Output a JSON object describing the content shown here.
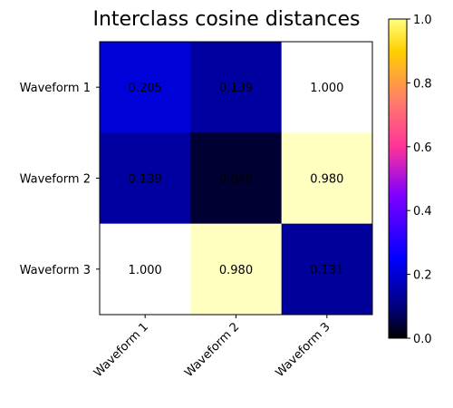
{
  "chart_data": {
    "type": "heatmap",
    "title": "Interclass cosine distances",
    "xlabel": "",
    "ylabel": "",
    "x_categories": [
      "Waveform 1",
      "Waveform 2",
      "Waveform 3"
    ],
    "y_categories": [
      "Waveform 1",
      "Waveform 2",
      "Waveform 3"
    ],
    "values": [
      [
        0.205,
        0.139,
        1.0
      ],
      [
        0.139,
        0.04,
        0.98
      ],
      [
        1.0,
        0.98,
        0.131
      ]
    ],
    "cell_labels": [
      [
        "0.205",
        "0.139",
        "1.000"
      ],
      [
        "0.139",
        "0.040",
        "0.980"
      ],
      [
        "1.000",
        "0.980",
        "0.131"
      ]
    ],
    "colormap": "gnuplot2",
    "colorbar": {
      "range": [
        0.0,
        1.0
      ],
      "ticks": [
        "0.0",
        "0.2",
        "0.4",
        "0.6",
        "0.8",
        "1.0"
      ]
    },
    "x_tick_rotation": 45,
    "grid": false
  }
}
